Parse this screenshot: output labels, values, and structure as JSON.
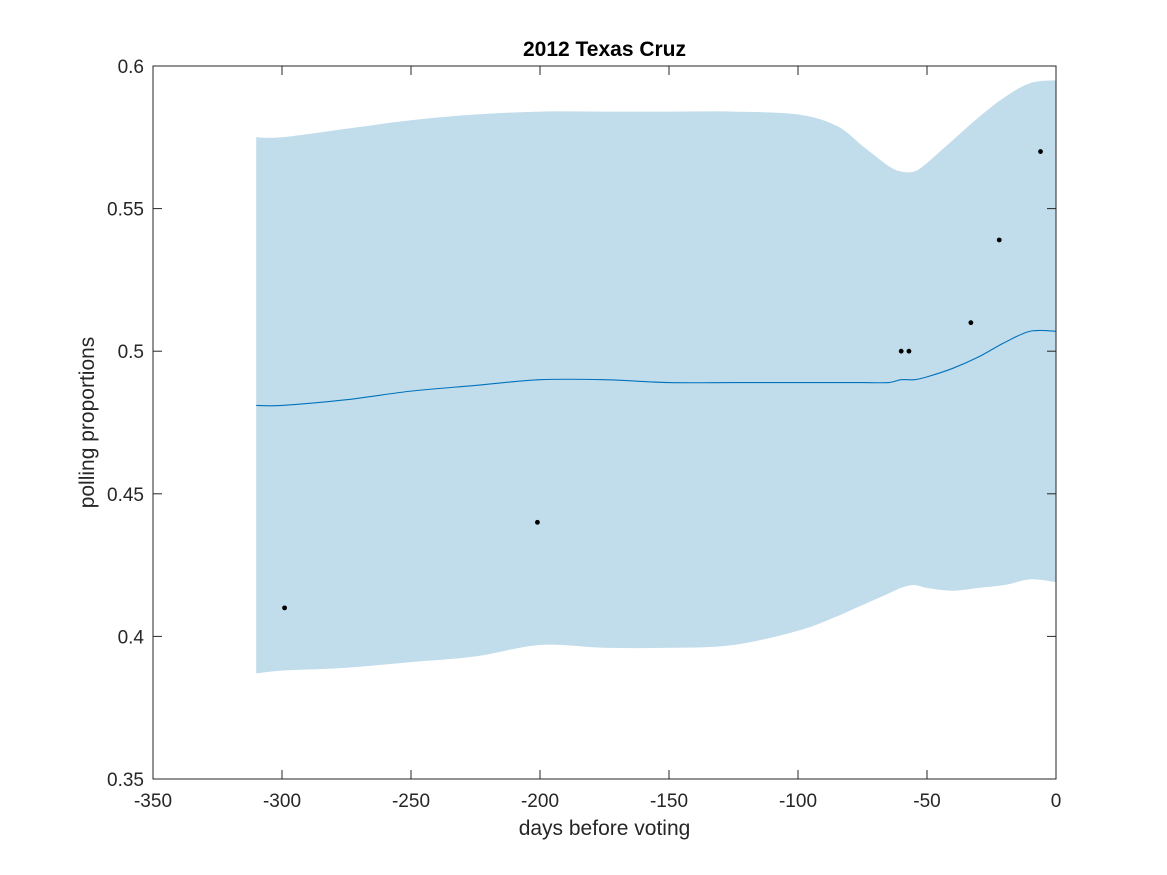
{
  "chart_data": {
    "type": "line",
    "title": "2012 Texas Cruz",
    "xlabel": "days before voting",
    "ylabel": "polling proportions",
    "xlim": [
      -350,
      0
    ],
    "ylim": [
      0.35,
      0.6
    ],
    "xticks": [
      -350,
      -300,
      -250,
      -200,
      -150,
      -100,
      -50,
      0
    ],
    "xtick_labels": [
      "-350",
      "-300",
      "-250",
      "-200",
      "-150",
      "-100",
      "-50",
      "0"
    ],
    "yticks": [
      0.35,
      0.4,
      0.45,
      0.5,
      0.55,
      0.6
    ],
    "ytick_labels": [
      "0.35",
      "0.4",
      "0.45",
      "0.5",
      "0.55",
      "0.6"
    ],
    "grid": false,
    "colors": {
      "band": "#c1dcea",
      "mean_line": "#0072bd",
      "points": "#000000",
      "axes": "#262626"
    },
    "band": {
      "x": [
        -310,
        -300,
        -275,
        -250,
        -225,
        -200,
        -175,
        -150,
        -125,
        -100,
        -85,
        -75,
        -65,
        -60,
        -55,
        -50,
        -40,
        -30,
        -20,
        -10,
        0
      ],
      "upper": [
        0.575,
        0.575,
        0.578,
        0.581,
        0.583,
        0.584,
        0.584,
        0.584,
        0.584,
        0.583,
        0.579,
        0.572,
        0.565,
        0.563,
        0.563,
        0.566,
        0.574,
        0.582,
        0.589,
        0.594,
        0.595
      ],
      "lower": [
        0.387,
        0.388,
        0.389,
        0.391,
        0.393,
        0.397,
        0.396,
        0.396,
        0.397,
        0.402,
        0.407,
        0.411,
        0.415,
        0.417,
        0.418,
        0.417,
        0.416,
        0.417,
        0.418,
        0.42,
        0.419
      ]
    },
    "series": [
      {
        "type": "line",
        "x": [
          -310,
          -300,
          -275,
          -250,
          -225,
          -200,
          -175,
          -150,
          -125,
          -100,
          -85,
          -75,
          -65,
          -60,
          -55,
          -50,
          -40,
          -30,
          -20,
          -10,
          0
        ],
        "values": [
          0.481,
          0.481,
          0.483,
          0.486,
          0.488,
          0.49,
          0.49,
          0.489,
          0.489,
          0.489,
          0.489,
          0.489,
          0.489,
          0.49,
          0.49,
          0.491,
          0.494,
          0.498,
          0.503,
          0.507,
          0.507
        ]
      },
      {
        "type": "scatter",
        "x": [
          -299,
          -201,
          -60,
          -57,
          -33,
          -22,
          -6
        ],
        "values": [
          0.41,
          0.44,
          0.5,
          0.5,
          0.51,
          0.539,
          0.57
        ]
      }
    ]
  }
}
